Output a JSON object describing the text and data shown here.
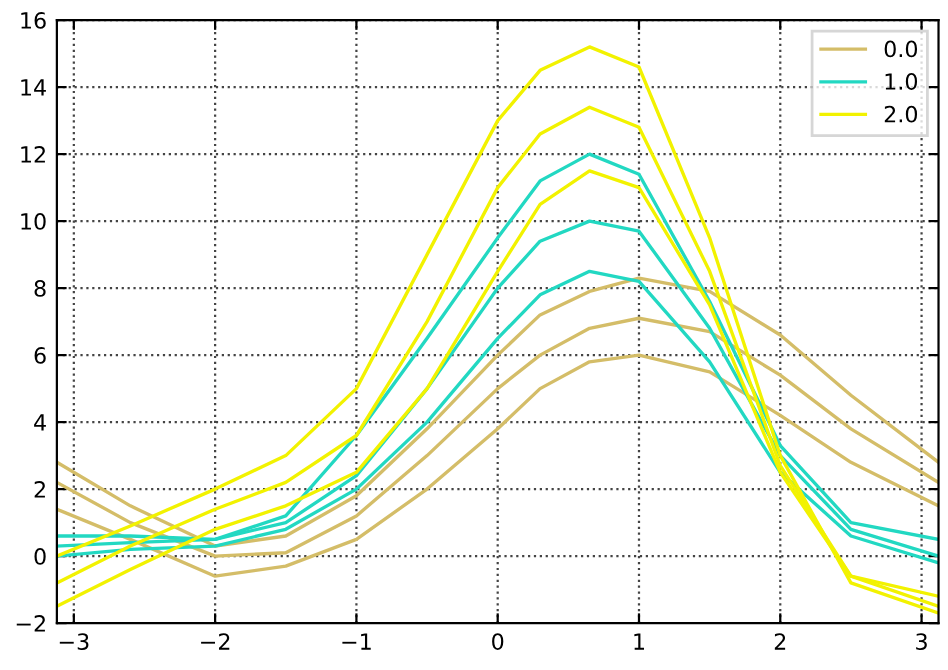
{
  "chart_data": {
    "type": "line",
    "x": [
      -3.12,
      -2.6,
      -2,
      -1.5,
      -1,
      -0.5,
      0,
      0.3,
      0.65,
      1,
      1.5,
      2,
      2.5,
      3.12
    ],
    "series": [
      {
        "name": "0.0",
        "color": "#d4bd68",
        "values": [
          1.4,
          0.5,
          -0.6,
          -0.3,
          0.5,
          2,
          3.8,
          5,
          5.8,
          6,
          5.5,
          4.2,
          2.8,
          1.5
        ]
      },
      {
        "color": "#d4bd68",
        "values": [
          2.2,
          1,
          0,
          0.1,
          1.2,
          3,
          5,
          6,
          6.8,
          7.1,
          6.7,
          5.4,
          3.8,
          2.2
        ]
      },
      {
        "color": "#d4bd68",
        "values": [
          2.8,
          1.5,
          0.3,
          0.6,
          1.8,
          3.8,
          6,
          7.2,
          7.9,
          8.3,
          7.9,
          6.6,
          4.8,
          2.8
        ]
      },
      {
        "name": "1.0",
        "color": "#22d8c2",
        "values": [
          0,
          0.2,
          0.3,
          0.8,
          2,
          4,
          6.5,
          7.8,
          8.5,
          8.2,
          5.8,
          2.5,
          0.6,
          -0.2
        ]
      },
      {
        "color": "#22d8c2",
        "values": [
          0.3,
          0.4,
          0.5,
          1,
          2.4,
          5,
          8,
          9.4,
          10,
          9.7,
          6.8,
          3,
          0.8,
          0
        ]
      },
      {
        "color": "#22d8c2",
        "values": [
          0.6,
          0.6,
          0.5,
          1.2,
          3.6,
          6.5,
          9.5,
          11.2,
          12,
          11.4,
          7.6,
          3.3,
          1,
          0.5
        ]
      },
      {
        "name": "2.0",
        "color": "#f2f200",
        "values": [
          -1.5,
          -0.4,
          0.8,
          1.5,
          2.5,
          5,
          8.5,
          10.5,
          11.5,
          11,
          7.5,
          2.5,
          -0.6,
          -1.5
        ]
      },
      {
        "color": "#f2f200",
        "values": [
          -0.8,
          0.3,
          1.4,
          2.2,
          3.6,
          7,
          11,
          12.6,
          13.4,
          12.8,
          8.5,
          2.7,
          -0.6,
          -1.2
        ]
      },
      {
        "color": "#f2f200",
        "values": [
          0,
          0.9,
          2,
          3,
          5,
          9,
          13,
          14.5,
          15.2,
          14.6,
          9.5,
          3,
          -0.8,
          -1.7
        ]
      }
    ],
    "xlim": [
      -3.12,
      3.12
    ],
    "xticks": [
      {
        "value": -3,
        "label": "−3"
      },
      {
        "value": -2,
        "label": "−2"
      },
      {
        "value": -1,
        "label": "−1"
      },
      0,
      1,
      2,
      3
    ],
    "ylim": [
      -2,
      16
    ],
    "yticks": [
      {
        "value": -2,
        "label": "−2"
      },
      0,
      2,
      4,
      6,
      8,
      10,
      12,
      14,
      16
    ],
    "grid": true,
    "legend": "top right",
    "marker": "none",
    "line_style": "solid"
  }
}
